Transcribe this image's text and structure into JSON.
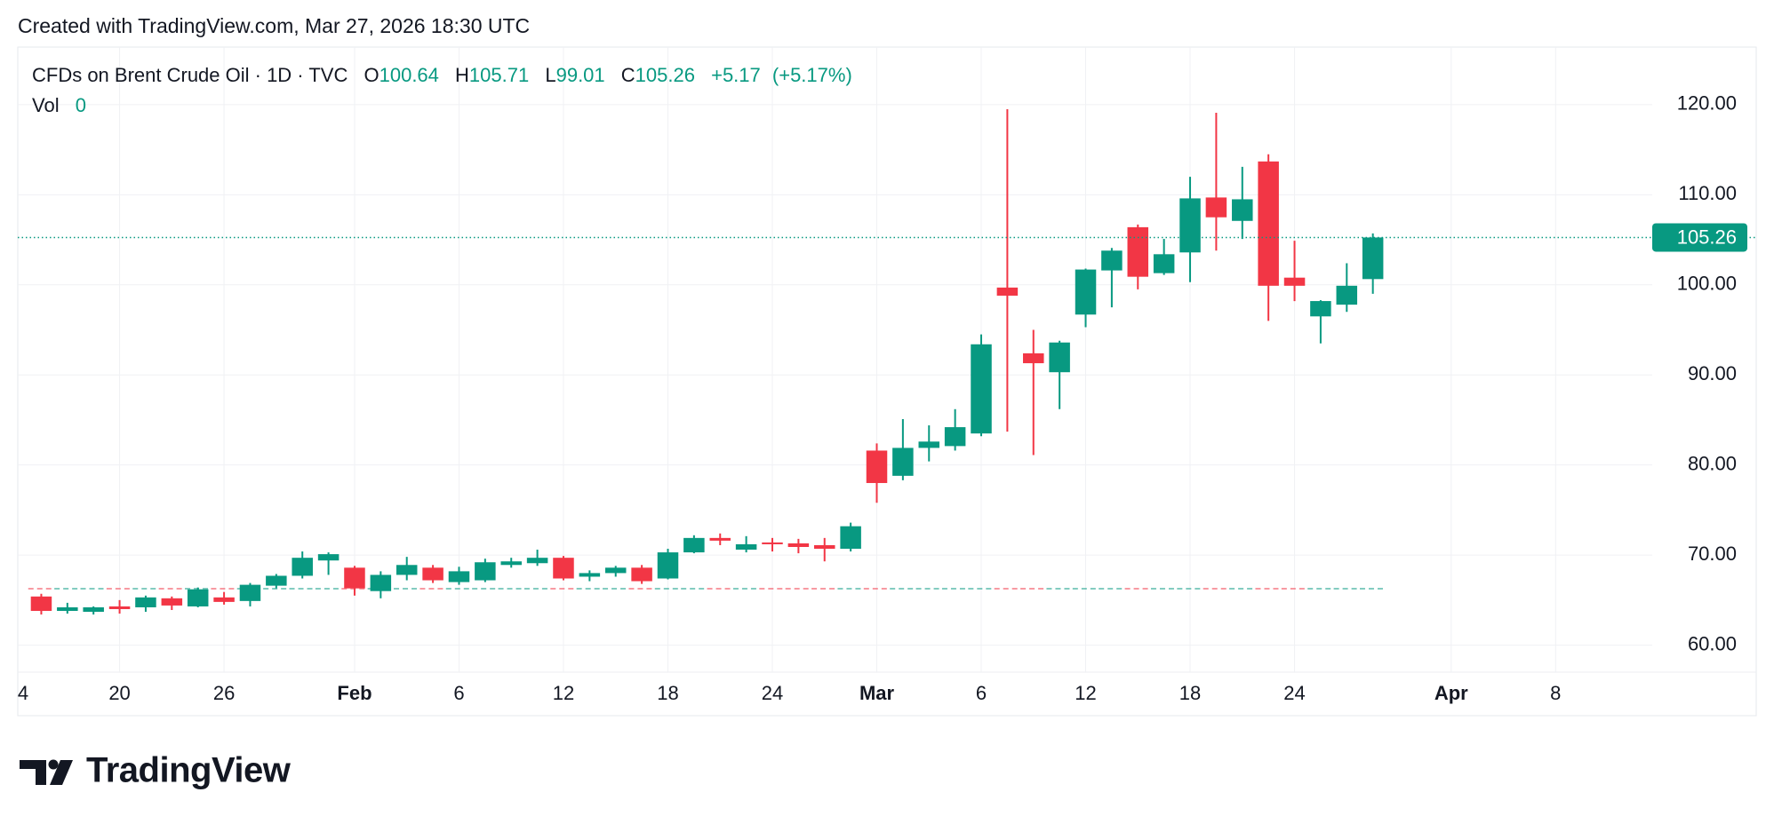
{
  "header": {
    "created": "Created with TradingView.com, Mar 27, 2026 18:30 UTC"
  },
  "chart_data": {
    "type": "candlestick",
    "title": "CFDs on Brent Crude Oil · 1D · TVC",
    "legend_labels": [
      "O",
      "H",
      "L",
      "C"
    ],
    "change": "+5.17",
    "change_pct": "(+5.17%)",
    "volume_label": "Vol",
    "volume_value": 0,
    "up_color": "#089981",
    "down_color": "#f23645",
    "open": [
      null,
      65.4,
      63.8,
      63.7,
      64.3,
      64.2,
      65.2,
      64.3,
      65.3,
      64.9,
      66.6,
      67.7,
      69.4,
      68.6,
      66.0,
      67.8,
      68.6,
      67.0,
      67.2,
      68.9,
      69.1,
      69.7,
      67.6,
      68.0,
      68.6,
      67.4,
      70.3,
      71.9,
      70.6,
      71.4,
      71.3,
      71.1,
      70.7,
      81.6,
      78.8,
      81.9,
      82.1,
      83.5,
      99.7,
      92.4,
      90.3,
      96.7,
      101.6,
      106.4,
      101.3,
      103.6,
      109.7,
      107.1,
      113.7,
      100.8,
      96.5,
      97.8,
      100.64
    ],
    "high": [
      null,
      65.7,
      64.7,
      64.3,
      65.0,
      65.5,
      65.4,
      66.4,
      65.9,
      66.9,
      67.9,
      70.4,
      70.3,
      68.8,
      68.2,
      69.8,
      68.9,
      68.7,
      69.6,
      69.7,
      70.6,
      69.9,
      68.3,
      68.8,
      68.9,
      70.7,
      72.2,
      72.4,
      72.1,
      71.9,
      71.8,
      71.9,
      73.6,
      82.4,
      85.1,
      84.4,
      86.2,
      94.5,
      119.5,
      95.0,
      93.8,
      101.8,
      104.1,
      106.7,
      105.1,
      112.0,
      119.1,
      113.1,
      114.5,
      104.9,
      98.3,
      102.4,
      105.71
    ],
    "low": [
      null,
      63.4,
      63.5,
      63.4,
      63.5,
      63.7,
      63.9,
      64.2,
      64.5,
      64.3,
      66.3,
      67.4,
      67.8,
      65.5,
      65.2,
      67.2,
      66.9,
      66.7,
      67.0,
      68.6,
      68.8,
      67.2,
      67.1,
      67.6,
      66.8,
      67.3,
      70.2,
      71.1,
      70.3,
      70.4,
      70.2,
      69.3,
      70.4,
      75.8,
      78.3,
      80.4,
      81.6,
      83.2,
      83.7,
      81.1,
      86.2,
      95.3,
      97.5,
      99.5,
      101.1,
      100.3,
      103.8,
      105.1,
      96.0,
      98.2,
      93.5,
      97.0,
      99.01
    ],
    "close": [
      null,
      63.8,
      64.2,
      64.2,
      64.0,
      65.3,
      64.4,
      66.2,
      64.8,
      66.7,
      67.7,
      69.7,
      70.1,
      66.3,
      67.8,
      68.9,
      67.2,
      68.2,
      69.2,
      69.3,
      69.7,
      67.4,
      68.0,
      68.6,
      67.1,
      70.3,
      71.9,
      71.6,
      71.2,
      71.2,
      70.9,
      70.7,
      73.2,
      78.0,
      81.9,
      82.6,
      84.2,
      93.4,
      98.8,
      91.3,
      93.6,
      101.7,
      103.8,
      100.9,
      103.4,
      109.6,
      107.5,
      109.5,
      99.9,
      99.9,
      98.2,
      99.9,
      105.26
    ],
    "xlim": [
      0.1,
      62.7
    ],
    "xticks": [
      {
        "value": 0,
        "label": "4"
      },
      {
        "value": 4,
        "label": "20"
      },
      {
        "value": 8,
        "label": "26"
      },
      {
        "value": 13,
        "label": "Feb"
      },
      {
        "value": 17,
        "label": "6"
      },
      {
        "value": 21,
        "label": "12"
      },
      {
        "value": 25,
        "label": "18"
      },
      {
        "value": 29,
        "label": "24"
      },
      {
        "value": 33,
        "label": "Mar"
      },
      {
        "value": 37,
        "label": "6"
      },
      {
        "value": 41,
        "label": "12"
      },
      {
        "value": 45,
        "label": "18"
      },
      {
        "value": 49,
        "label": "24"
      },
      {
        "value": 55,
        "label": "Apr"
      },
      {
        "value": 59,
        "label": "8"
      }
    ],
    "ylim": [
      57,
      126.4
    ],
    "yticks": [
      {
        "value": 60,
        "label": "60.00"
      },
      {
        "value": 70,
        "label": "70.00"
      },
      {
        "value": 80,
        "label": "80.00"
      },
      {
        "value": 90,
        "label": "90.00"
      },
      {
        "value": 100,
        "label": "100.00"
      },
      {
        "value": 110,
        "label": "110.00"
      },
      {
        "value": 120,
        "label": "120.00"
      }
    ],
    "grid": true,
    "last_price_line": true
  },
  "footer": {
    "brand": "TradingView"
  }
}
